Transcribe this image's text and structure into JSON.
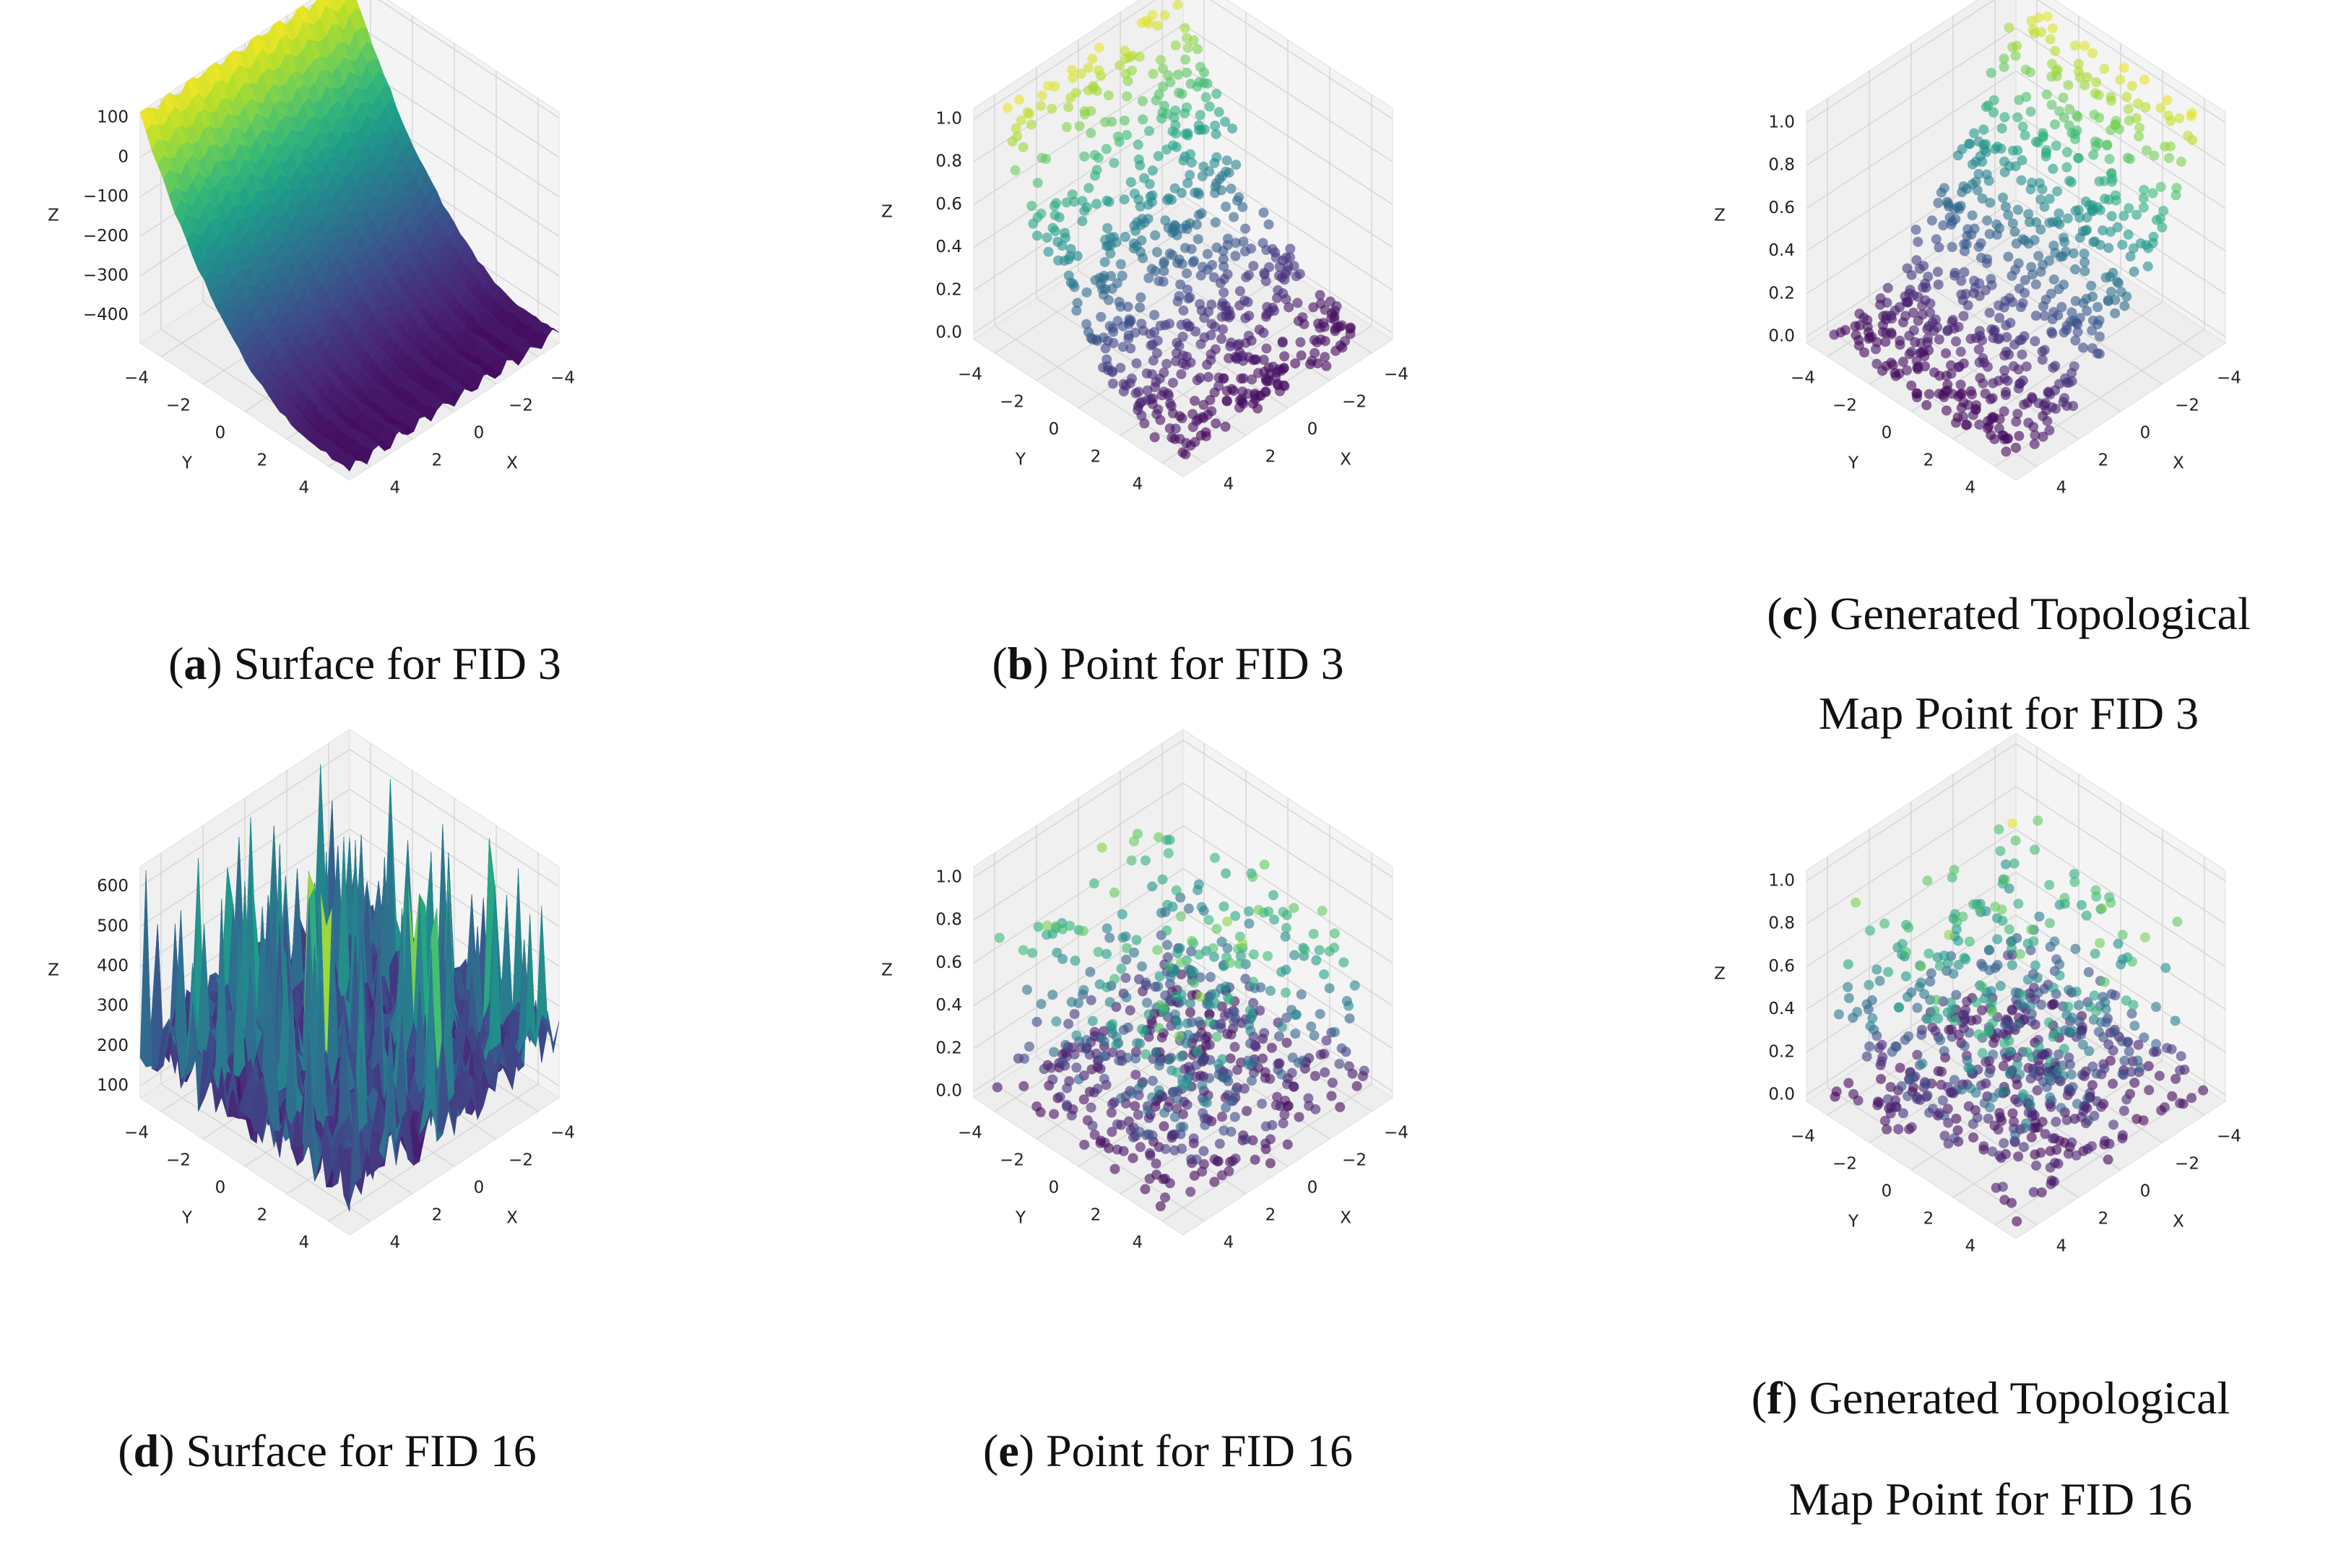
{
  "chart_data": [
    {
      "type": "surface3d",
      "colormap": "viridis",
      "xlabel": "X",
      "ylabel": "Y",
      "zlabel": "Z",
      "xlim": [
        -5,
        5
      ],
      "ylim": [
        -5,
        5
      ],
      "zlim": [
        -470,
        115
      ],
      "xticks": [
        {
          "value": -4,
          "label": "−4"
        },
        {
          "value": -2,
          "label": "−2"
        },
        0,
        2,
        4
      ],
      "yticks": [
        {
          "value": -4,
          "label": "−4"
        },
        {
          "value": -2,
          "label": "−2"
        },
        0,
        2,
        4
      ],
      "zticks": [
        100,
        0,
        {
          "value": -100,
          "label": "−100"
        },
        {
          "value": -200,
          "label": "−200"
        },
        {
          "value": -300,
          "label": "−300"
        },
        {
          "value": -400,
          "label": "−400"
        }
      ],
      "caption": {
        "open": "(",
        "label": "a",
        "text": ") Surface for FID 3"
      }
    },
    {
      "type": "scatter3d",
      "colormap": "viridis",
      "xlabel": "X",
      "ylabel": "Y",
      "zlabel": "Z",
      "xlim": [
        -5,
        5
      ],
      "ylim": [
        -5,
        5
      ],
      "zlim": [
        -0.03,
        1.05
      ],
      "xticks": [
        {
          "value": -4,
          "label": "−4"
        },
        {
          "value": -2,
          "label": "−2"
        },
        0,
        2,
        4
      ],
      "yticks": [
        {
          "value": -4,
          "label": "−4"
        },
        {
          "value": -2,
          "label": "−2"
        },
        0,
        2,
        4
      ],
      "zticks": [
        {
          "value": 0,
          "label": "0.0"
        },
        0.2,
        0.4,
        0.6,
        0.8,
        {
          "value": 1,
          "label": "1.0"
        }
      ],
      "caption": {
        "open": "(",
        "label": "b",
        "text": ") Point for FID 3"
      }
    },
    {
      "type": "scatter3d",
      "colormap": "viridis",
      "xlabel": "X",
      "ylabel": "Y",
      "zlabel": "Z",
      "xlim": [
        -5,
        5
      ],
      "ylim": [
        -5,
        5
      ],
      "zlim": [
        -0.03,
        1.05
      ],
      "xticks": [
        {
          "value": -4,
          "label": "−4"
        },
        {
          "value": -2,
          "label": "−2"
        },
        0,
        2,
        4
      ],
      "yticks": [
        {
          "value": -4,
          "label": "−4"
        },
        {
          "value": -2,
          "label": "−2"
        },
        0,
        2,
        4
      ],
      "zticks": [
        {
          "value": 0,
          "label": "0.0"
        },
        0.2,
        0.4,
        0.6,
        0.8,
        {
          "value": 1,
          "label": "1.0"
        }
      ],
      "caption": {
        "open": "(",
        "label": "c",
        "text": ") Generated Topological",
        "text2": "Map Point for FID 3"
      }
    },
    {
      "type": "surface3d",
      "colormap": "viridis",
      "xlabel": "X",
      "ylabel": "Y",
      "zlabel": "Z",
      "xlim": [
        -5,
        5
      ],
      "ylim": [
        -5,
        5
      ],
      "zlim": [
        70,
        650
      ],
      "xticks": [
        {
          "value": -4,
          "label": "−4"
        },
        {
          "value": -2,
          "label": "−2"
        },
        0,
        2,
        4
      ],
      "yticks": [
        {
          "value": -4,
          "label": "−4"
        },
        {
          "value": -2,
          "label": "−2"
        },
        0,
        2,
        4
      ],
      "zticks": [
        100,
        200,
        300,
        400,
        500,
        600
      ],
      "caption": {
        "open": "(",
        "label": "d",
        "text": ") Surface for FID 16"
      }
    },
    {
      "type": "scatter3d",
      "colormap": "viridis",
      "xlabel": "X",
      "ylabel": "Y",
      "zlabel": "Z",
      "xlim": [
        -5,
        5
      ],
      "ylim": [
        -5,
        5
      ],
      "zlim": [
        -0.03,
        1.05
      ],
      "xticks": [
        {
          "value": -4,
          "label": "−4"
        },
        {
          "value": -2,
          "label": "−2"
        },
        0,
        2,
        4
      ],
      "yticks": [
        {
          "value": -4,
          "label": "−4"
        },
        {
          "value": -2,
          "label": "−2"
        },
        0,
        2,
        4
      ],
      "zticks": [
        {
          "value": 0,
          "label": "0.0"
        },
        0.2,
        0.4,
        0.6,
        0.8,
        {
          "value": 1,
          "label": "1.0"
        }
      ],
      "caption": {
        "open": "(",
        "label": "e",
        "text": ") Point for FID 16"
      }
    },
    {
      "type": "scatter3d",
      "colormap": "viridis",
      "xlabel": "X",
      "ylabel": "Y",
      "zlabel": "Z",
      "xlim": [
        -5,
        5
      ],
      "ylim": [
        -5,
        5
      ],
      "zlim": [
        -0.03,
        1.05
      ],
      "xticks": [
        {
          "value": -4,
          "label": "−4"
        },
        {
          "value": -2,
          "label": "−2"
        },
        0,
        2,
        4
      ],
      "yticks": [
        {
          "value": -4,
          "label": "−4"
        },
        {
          "value": -2,
          "label": "−2"
        },
        0,
        2,
        4
      ],
      "zticks": [
        {
          "value": 0,
          "label": "0.0"
        },
        0.2,
        0.4,
        0.6,
        0.8,
        {
          "value": 1,
          "label": "1.0"
        }
      ],
      "caption": {
        "open": "(",
        "label": "f",
        "text": ") Generated Topological",
        "text2": "Map Point for FID 16"
      }
    }
  ]
}
